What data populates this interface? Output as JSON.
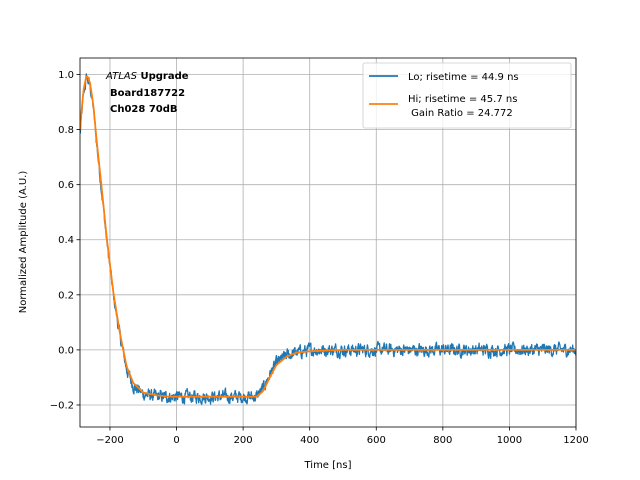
{
  "chart_data": {
    "type": "line",
    "title": "",
    "xlabel": "Time [ns]",
    "ylabel": "Normalized Amplitude (A.U.)",
    "xlim": [
      -290,
      1200
    ],
    "ylim": [
      -0.28,
      1.06
    ],
    "xticks": [
      -200,
      0,
      200,
      400,
      600,
      800,
      1000,
      1200
    ],
    "xtick_labels": [
      "−200",
      "0",
      "200",
      "400",
      "600",
      "800",
      "1000",
      "1200"
    ],
    "yticks": [
      -0.2,
      0.0,
      0.2,
      0.4,
      0.6,
      0.8,
      1.0
    ],
    "ytick_labels": [
      "−0.2",
      "0.0",
      "0.2",
      "0.4",
      "0.6",
      "0.8",
      "1.0"
    ],
    "grid": true,
    "legend_position": "top-right",
    "annotation": {
      "italic": "ATLAS",
      "bold_suffix": " Upgrade",
      "line2": "Board187722",
      "line3": "Ch028 70dB"
    },
    "series": [
      {
        "name": "Lo; risetime = 44.9 ns",
        "color": "#1f77b4",
        "noise": 0.022,
        "x": [
          -290,
          -280,
          -270,
          -260,
          -250,
          -240,
          -225,
          -210,
          -190,
          -170,
          -150,
          -130,
          -100,
          -60,
          -20,
          20,
          60,
          100,
          150,
          200,
          240,
          260,
          280,
          300,
          330,
          360,
          400,
          500,
          600,
          700,
          800,
          900,
          1000,
          1100,
          1200
        ],
        "values": [
          0.78,
          0.92,
          0.99,
          0.96,
          0.88,
          0.75,
          0.58,
          0.4,
          0.2,
          0.05,
          -0.07,
          -0.13,
          -0.16,
          -0.17,
          -0.17,
          -0.17,
          -0.17,
          -0.17,
          -0.17,
          -0.17,
          -0.17,
          -0.14,
          -0.09,
          -0.05,
          -0.02,
          -0.01,
          0.0,
          0.0,
          0.0,
          0.0,
          0.0,
          0.0,
          0.0,
          0.0,
          0.0
        ]
      },
      {
        "name": "Hi; risetime = 45.7 ns\n Gain Ratio = 24.772",
        "color": "#ff7f0e",
        "noise": 0.0,
        "x": [
          -290,
          -280,
          -270,
          -260,
          -250,
          -240,
          -225,
          -210,
          -190,
          -170,
          -150,
          -130,
          -100,
          -60,
          -20,
          20,
          60,
          100,
          150,
          200,
          240,
          260,
          280,
          300,
          330,
          360,
          400,
          500,
          600,
          700,
          800,
          900,
          1000,
          1100,
          1200
        ],
        "values": [
          0.8,
          0.94,
          1.0,
          0.97,
          0.89,
          0.76,
          0.59,
          0.41,
          0.21,
          0.06,
          -0.06,
          -0.12,
          -0.155,
          -0.165,
          -0.17,
          -0.17,
          -0.17,
          -0.17,
          -0.17,
          -0.17,
          -0.17,
          -0.15,
          -0.1,
          -0.055,
          -0.025,
          -0.01,
          -0.005,
          0.0,
          0.0,
          0.0,
          0.0,
          0.0,
          0.0,
          0.0,
          0.0
        ]
      }
    ]
  }
}
